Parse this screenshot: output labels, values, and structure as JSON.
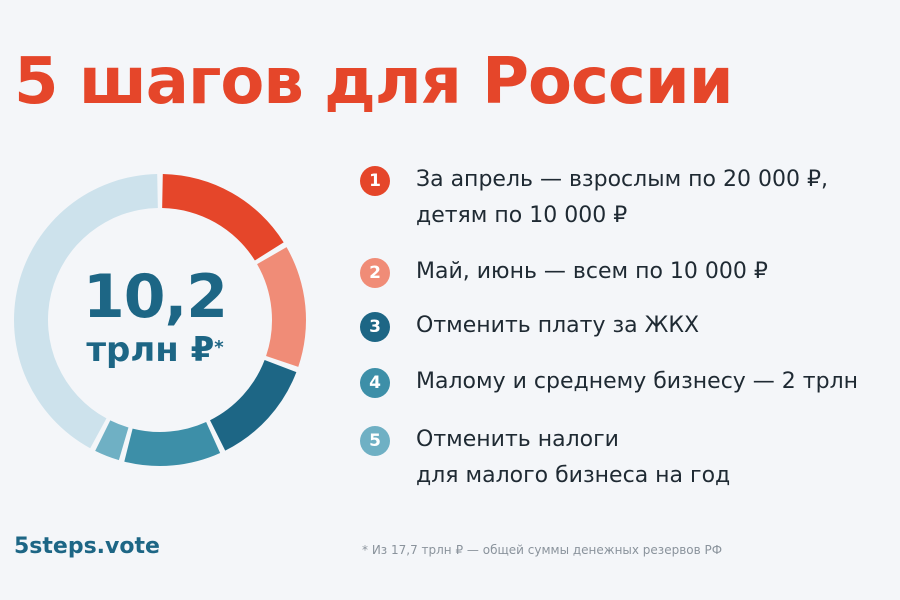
{
  "title": "5 шагов для России",
  "center": {
    "value": "10,2",
    "unit": "трлн ₽",
    "asterisk": "*"
  },
  "steps": [
    {
      "number": "1",
      "color": "#e5462a",
      "lines": [
        "За апрель — взрослым по 20 000 ₽,",
        "детям по 10 000 ₽"
      ]
    },
    {
      "number": "2",
      "color": "#f08c77",
      "lines": [
        "Май, июнь — всем по 10 000 ₽"
      ]
    },
    {
      "number": "3",
      "color": "#1d6685",
      "lines": [
        "Отменить плату за ЖКХ"
      ]
    },
    {
      "number": "4",
      "color": "#3d8fa8",
      "lines": [
        "Малому и среднему бизнесу — 2 трлн"
      ]
    },
    {
      "number": "5",
      "color": "#6fb0c4",
      "lines": [
        "Отменить налоги",
        "для малого бизнеса на год"
      ]
    }
  ],
  "site": "5steps.vote",
  "footnote": "* Из 17,7 трлн ₽ — общей суммы денежных резервов РФ",
  "chart_data": {
    "type": "pie",
    "donut": true,
    "unit": "трлн ₽",
    "total": 17.7,
    "segments": [
      {
        "step": "1",
        "value": 2.9,
        "color": "#e5462a"
      },
      {
        "step": "2",
        "value": 2.5,
        "color": "#f08c77"
      },
      {
        "step": "3",
        "value": 2.2,
        "color": "#1d6685"
      },
      {
        "step": "4",
        "value": 2.0,
        "color": "#3d8fa8"
      },
      {
        "step": "5",
        "value": 0.6,
        "color": "#6fb0c4"
      },
      {
        "step": "",
        "value": 7.5,
        "color": "#cde2ec"
      }
    ]
  }
}
